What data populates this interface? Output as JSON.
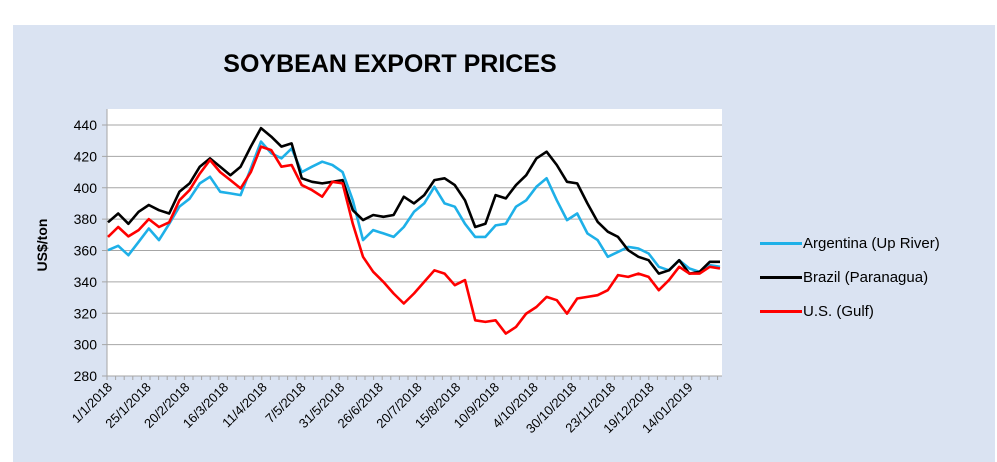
{
  "chart_data": {
    "type": "line",
    "title": "SOYBEAN EXPORT PRICES",
    "xlabel": "",
    "ylabel": "US$/ton",
    "ylim": [
      280,
      440
    ],
    "yticks": [
      280,
      300,
      320,
      340,
      360,
      380,
      400,
      420,
      440
    ],
    "grid": true,
    "legend_position": "right",
    "xtick_labels": [
      "1/1/2018",
      "25/1/2018",
      "20/2/2018",
      "16/3/2018",
      "11/4/2018",
      "7/5/2018",
      "31/5/2018",
      "26/6/2018",
      "20/7/2018",
      "15/8/2018",
      "10/9/2018",
      "4/10/2018",
      "30/10/2018",
      "23/11/2018",
      "19/12/2018",
      "14/01/2019"
    ],
    "series": [
      {
        "name": "Argentina (Up River)",
        "color": "#1eb0e8",
        "values": [
          360.2,
          363,
          357,
          365.5,
          374,
          366.6,
          377,
          388,
          393,
          402.8,
          407,
          397.4,
          396.4,
          395.3,
          412.3,
          429.4,
          422,
          418.7,
          425,
          410,
          413.4,
          416.6,
          414.5,
          410,
          392,
          366.6,
          373,
          370.9,
          368.7,
          375,
          384.7,
          390,
          400.6,
          390,
          387.9,
          377,
          368.7,
          368.7,
          376,
          377,
          387.9,
          392,
          400.6,
          406,
          392,
          379.4,
          383.6,
          370.9,
          366.6,
          356,
          359.1,
          362.3,
          361.3,
          358.1,
          349.6,
          347.4,
          353.8,
          348.5,
          346.4,
          350.6,
          349.6
        ]
      },
      {
        "name": "Brazil (Paranagua)",
        "color": "#000000",
        "values": [
          378,
          383.6,
          377,
          384.7,
          389,
          385.7,
          383.6,
          397.4,
          402.8,
          413.4,
          418.7,
          413.4,
          408,
          413.4,
          426.2,
          438,
          432.6,
          426.2,
          428.3,
          406,
          403.8,
          402.8,
          403.8,
          404.9,
          385.7,
          379.4,
          382.6,
          381.5,
          382.6,
          394.3,
          390,
          395.3,
          404.9,
          406,
          401.7,
          392,
          375,
          377,
          395.3,
          393.2,
          401.7,
          408,
          418.7,
          423,
          414.5,
          403.8,
          402.8,
          390,
          378.3,
          372,
          368.7,
          360.2,
          356,
          353.8,
          345.3,
          347.4,
          353.8,
          345.3,
          346.4,
          352.8,
          352.8
        ]
      },
      {
        "name": "U.S. (Gulf)",
        "color": "#ff0000",
        "values": [
          368.7,
          375,
          369,
          373,
          380,
          375,
          378,
          392,
          398.5,
          409,
          417.7,
          410,
          404.9,
          399.6,
          410,
          426.2,
          424,
          413.4,
          414.5,
          401.7,
          398.5,
          394.3,
          403.8,
          402.8,
          377,
          356,
          346.4,
          340,
          332.6,
          326.2,
          332.6,
          340,
          347.4,
          345.3,
          337.9,
          341.1,
          315.5,
          314.5,
          315.5,
          307,
          311.3,
          319.8,
          324,
          330.4,
          328.3,
          319.8,
          329.4,
          330.4,
          331.5,
          334.7,
          344.3,
          343.2,
          345.3,
          343.2,
          334.7,
          341.1,
          349.6,
          345.3,
          345.3,
          349.6,
          348.5
        ]
      }
    ]
  }
}
